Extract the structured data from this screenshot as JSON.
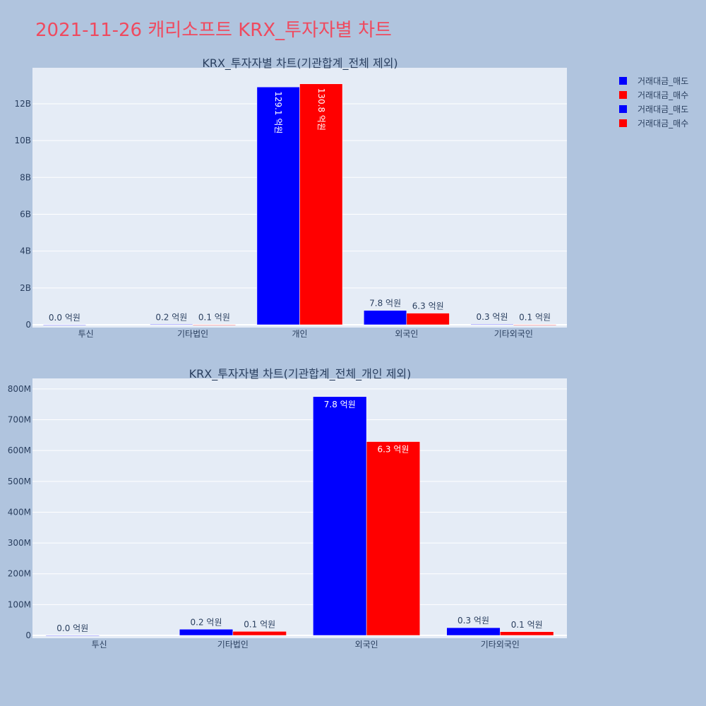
{
  "title": "2021-11-26 캐리소프트 KRX_투자자별 차트",
  "colors": {
    "sell": "#0000ff",
    "buy": "#ff0000",
    "plot_bg": "#e5ecf6",
    "page_bg": "#b0c4de",
    "title": "#ef4a5f"
  },
  "legend": [
    {
      "name": "거래대금_매도",
      "color": "#0000ff"
    },
    {
      "name": "거래대금_매수",
      "color": "#ff0000"
    },
    {
      "name": "거래대금_매도",
      "color": "#0000ff"
    },
    {
      "name": "거래대금_매수",
      "color": "#ff0000"
    }
  ],
  "chart_data": [
    {
      "type": "bar",
      "title": "KRX_투자자별 차트(기관합계_전체 제외)",
      "categories": [
        "투신",
        "기타법인",
        "개인",
        "외국인",
        "기타외국인"
      ],
      "ylim": [
        0,
        13800000000
      ],
      "yticks": [
        0,
        2000000000,
        4000000000,
        6000000000,
        8000000000,
        10000000000,
        12000000000
      ],
      "ytick_labels": [
        "0",
        "2B",
        "4B",
        "6B",
        "8B",
        "10B",
        "12B"
      ],
      "series": [
        {
          "name": "거래대금_매도",
          "values": [
            0,
            20000000,
            12910000000,
            780000000,
            30000000
          ],
          "labels": [
            "0.0 억원",
            "0.2 억원",
            "129.1 억원",
            "7.8 억원",
            "0.3 억원"
          ]
        },
        {
          "name": "거래대금_매수",
          "values": [
            null,
            10000000,
            13080000000,
            630000000,
            10000000
          ],
          "labels": [
            "",
            "0.1 억원",
            "130.8 억원",
            "6.3 억원",
            "0.1 억원"
          ]
        }
      ]
    },
    {
      "type": "bar",
      "title": "KRX_투자자별 차트(기관합계_전체_개인 제외)",
      "categories": [
        "투신",
        "기타법인",
        "외국인",
        "기타외국인"
      ],
      "ylim": [
        0,
        825000000
      ],
      "yticks": [
        0,
        100000000,
        200000000,
        300000000,
        400000000,
        500000000,
        600000000,
        700000000,
        800000000
      ],
      "ytick_labels": [
        "0",
        "100M",
        "200M",
        "300M",
        "400M",
        "500M",
        "600M",
        "700M",
        "800M"
      ],
      "series": [
        {
          "name": "거래대금_매도",
          "values": [
            0,
            20000000,
            775000000,
            25000000
          ],
          "labels": [
            "0.0 억원",
            "0.2 억원",
            "7.8 억원",
            "0.3 억원"
          ]
        },
        {
          "name": "거래대금_매수",
          "values": [
            null,
            13000000,
            629000000,
            12000000
          ],
          "labels": [
            "",
            "0.1 억원",
            "6.3 억원",
            "0.1 억원"
          ]
        }
      ]
    }
  ]
}
